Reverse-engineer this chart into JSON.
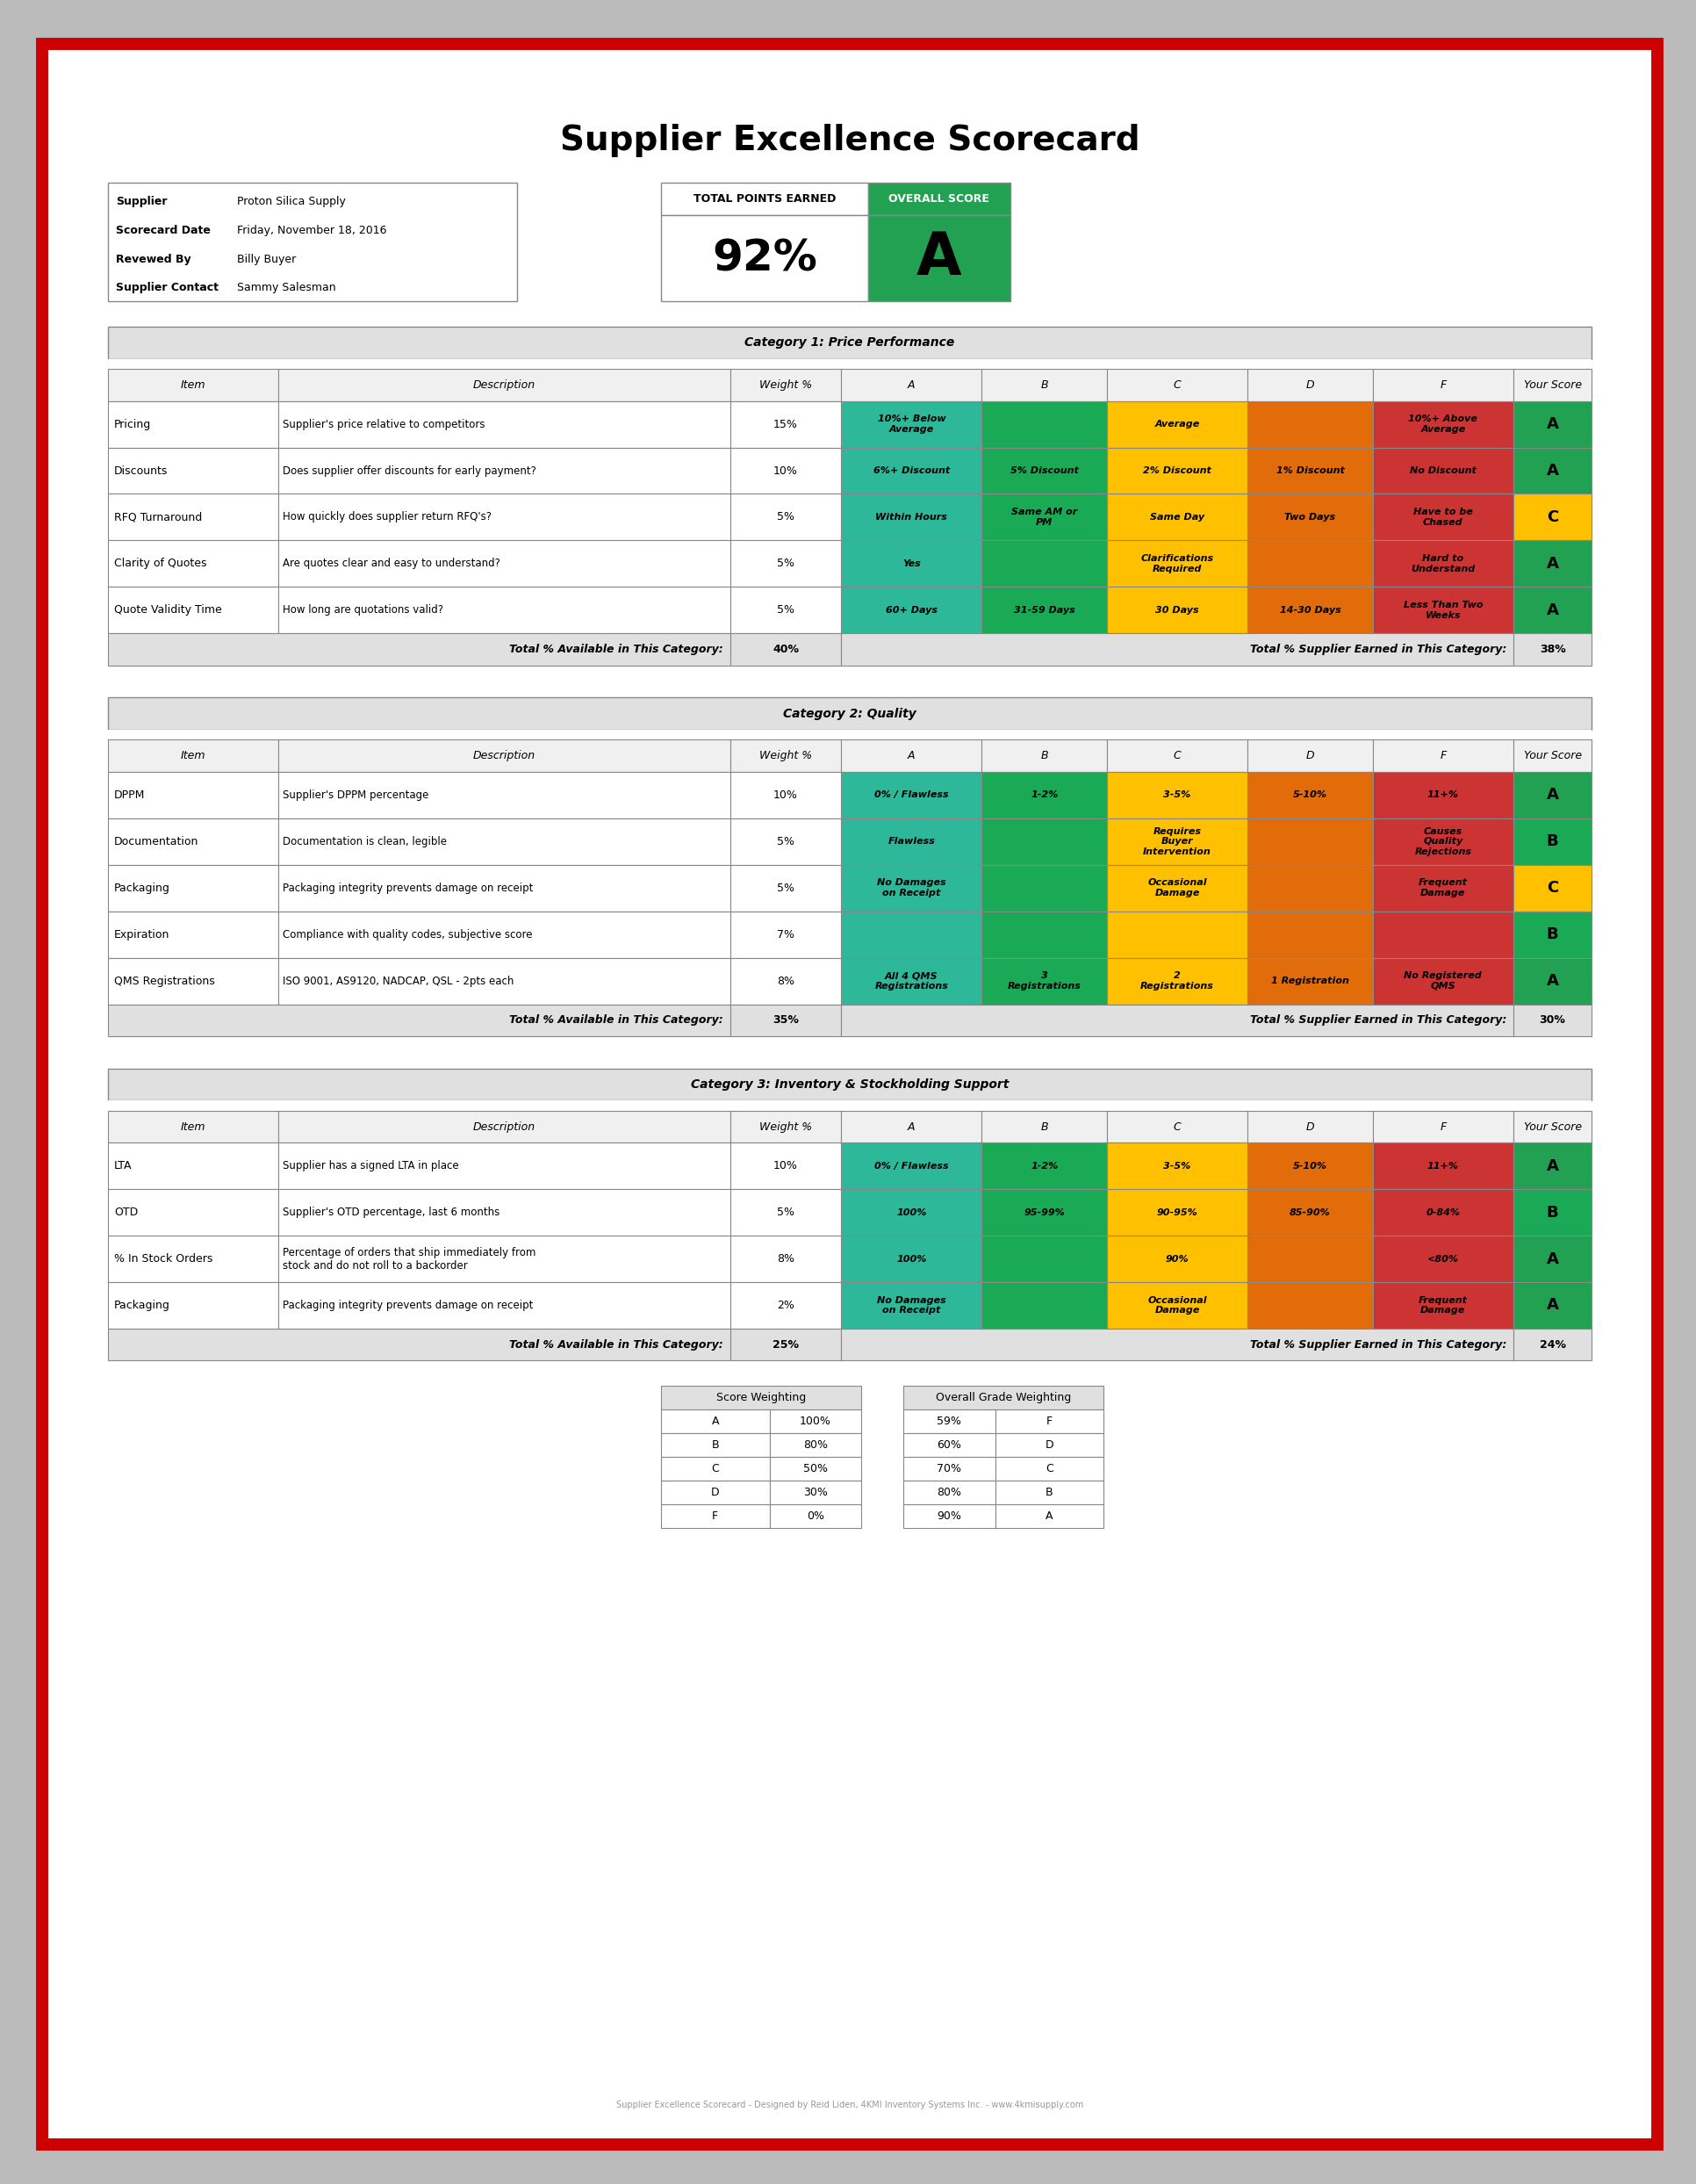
{
  "title": "Supplier Excellence Scorecard",
  "supplier": "Proton Silica Supply",
  "scorecard_date": "Friday, November 18, 2016",
  "reviewed_by": "Billy Buyer",
  "supplier_contact": "Sammy Salesman",
  "total_points": "92%",
  "overall_score": "A",
  "colors": {
    "green": "#1aaa55",
    "teal": "#2eb89a",
    "yellow": "#ffc000",
    "orange": "#e26b0a",
    "red": "#cc3333",
    "light_gray": "#d9d9d9",
    "header_gray": "#e0e0e0",
    "white": "#ffffff",
    "score_green": "#21a151"
  },
  "cat1_title": "Category 1: Price Performance",
  "cat1_rows": [
    {
      "item": "Pricing",
      "desc": "Supplier's price relative to competitors",
      "weight": "15%",
      "A": "10%+ Below\nAverage",
      "B": "",
      "C": "Average",
      "D": "",
      "F": "10%+ Above\nAverage",
      "score": "A",
      "score_color": "#21a151"
    },
    {
      "item": "Discounts",
      "desc": "Does supplier offer discounts for early payment?",
      "weight": "10%",
      "A": "6%+ Discount",
      "B": "5% Discount",
      "C": "2% Discount",
      "D": "1% Discount",
      "F": "No Discount",
      "score": "A",
      "score_color": "#21a151"
    },
    {
      "item": "RFQ Turnaround",
      "desc": "How quickly does supplier return RFQ's?",
      "weight": "5%",
      "A": "Within Hours",
      "B": "Same AM or\nPM",
      "C": "Same Day",
      "D": "Two Days",
      "F": "Have to be\nChased",
      "score": "C",
      "score_color": "#ffc000"
    },
    {
      "item": "Clarity of Quotes",
      "desc": "Are quotes clear and easy to understand?",
      "weight": "5%",
      "A": "Yes",
      "B": "",
      "C": "Clarifications\nRequired",
      "D": "",
      "F": "Hard to\nUnderstand",
      "score": "A",
      "score_color": "#21a151"
    },
    {
      "item": "Quote Validity Time",
      "desc": "How long are quotations valid?",
      "weight": "5%",
      "A": "60+ Days",
      "B": "31-59 Days",
      "C": "30 Days",
      "D": "14-30 Days",
      "F": "Less Than Two\nWeeks",
      "score": "A",
      "score_color": "#21a151"
    }
  ],
  "cat1_total_avail": "40%",
  "cat1_total_earned": "38%",
  "cat2_title": "Category 2: Quality",
  "cat2_rows": [
    {
      "item": "DPPM",
      "desc": "Supplier's DPPM percentage",
      "weight": "10%",
      "A": "0% / Flawless",
      "B": "1-2%",
      "C": "3-5%",
      "D": "5-10%",
      "F": "11+%",
      "score": "A",
      "score_color": "#21a151"
    },
    {
      "item": "Documentation",
      "desc": "Documentation is clean, legible",
      "weight": "5%",
      "A": "Flawless",
      "B": "",
      "C": "Requires\nBuyer\nIntervention",
      "D": "",
      "F": "Causes\nQuality\nRejections",
      "score": "B",
      "score_color": "#1aaa55"
    },
    {
      "item": "Packaging",
      "desc": "Packaging integrity prevents damage on receipt",
      "weight": "5%",
      "A": "No Damages\non Receipt",
      "B": "",
      "C": "Occasional\nDamage",
      "D": "",
      "F": "Frequent\nDamage",
      "score": "C",
      "score_color": "#ffc000"
    },
    {
      "item": "Expiration",
      "desc": "Compliance with quality codes, subjective score",
      "weight": "7%",
      "A": "",
      "B": "",
      "C": "",
      "D": "",
      "F": "",
      "score": "B",
      "score_color": "#1aaa55"
    },
    {
      "item": "QMS Registrations",
      "desc": "ISO 9001, AS9120, NADCAP, QSL - 2pts each",
      "weight": "8%",
      "A": "All 4 QMS\nRegistrations",
      "B": "3\nRegistrations",
      "C": "2\nRegistrations",
      "D": "1 Registration",
      "F": "No Registered\nQMS",
      "score": "A",
      "score_color": "#21a151"
    }
  ],
  "cat2_total_avail": "35%",
  "cat2_total_earned": "30%",
  "cat3_title": "Category 3: Inventory & Stockholding Support",
  "cat3_rows": [
    {
      "item": "LTA",
      "desc": "Supplier has a signed LTA in place",
      "weight": "10%",
      "A": "0% / Flawless",
      "B": "1-2%",
      "C": "3-5%",
      "D": "5-10%",
      "F": "11+%",
      "score": "A",
      "score_color": "#21a151"
    },
    {
      "item": "OTD",
      "desc": "Supplier's OTD percentage, last 6 months",
      "weight": "5%",
      "A": "100%",
      "B": "95-99%",
      "C": "90-95%",
      "D": "85-90%",
      "F": "0-84%",
      "score": "B",
      "score_color": "#1aaa55"
    },
    {
      "item": "% In Stock Orders",
      "desc": "Percentage of orders that ship immediately from\nstock and do not roll to a backorder",
      "weight": "8%",
      "A": "100%",
      "B": "",
      "C": "90%",
      "D": "",
      "F": "<80%",
      "score": "A",
      "score_color": "#21a151"
    },
    {
      "item": "Packaging",
      "desc": "Packaging integrity prevents damage on receipt",
      "weight": "2%",
      "A": "No Damages\non Receipt",
      "B": "",
      "C": "Occasional\nDamage",
      "D": "",
      "F": "Frequent\nDamage",
      "score": "A",
      "score_color": "#21a151"
    }
  ],
  "cat3_total_avail": "25%",
  "cat3_total_earned": "24%",
  "score_weighting": [
    [
      "A",
      "100%"
    ],
    [
      "B",
      "80%"
    ],
    [
      "C",
      "50%"
    ],
    [
      "D",
      "30%"
    ],
    [
      "F",
      "0%"
    ]
  ],
  "grade_weighting": [
    [
      "59%",
      "F"
    ],
    [
      "60%",
      "D"
    ],
    [
      "70%",
      "C"
    ],
    [
      "80%",
      "B"
    ],
    [
      "90%",
      "A"
    ]
  ],
  "footer": "Supplier Excellence Scorecard - Designed by Reid Liden, 4KMI Inventory Systems Inc. - www.4kmisupply.com"
}
